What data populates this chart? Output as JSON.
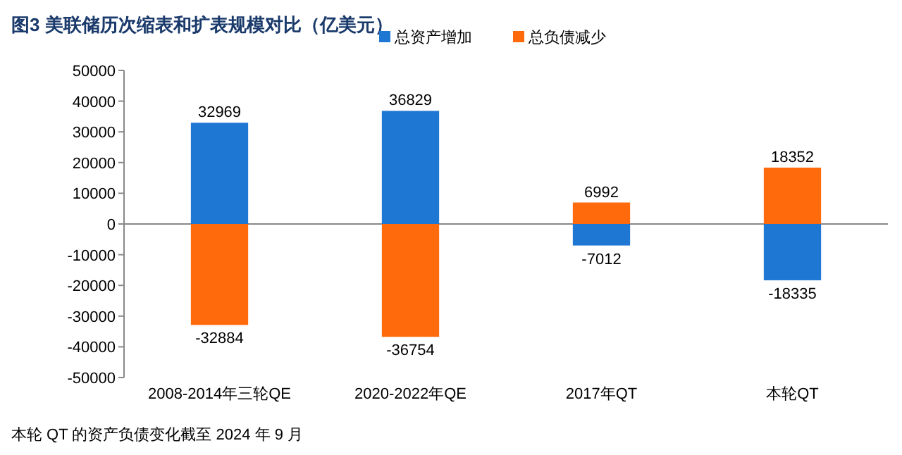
{
  "chart_data": {
    "type": "bar",
    "title": "图3  美联储历次缩表和扩表规模对比（亿美元）",
    "categories": [
      "2008-2014年三轮QE",
      "2020-2022年QE",
      "2017年QT",
      "本轮QT"
    ],
    "series": [
      {
        "name": "总资产增加",
        "color": "#1f77d4",
        "values": [
          32969,
          36829,
          -7012,
          -18335
        ]
      },
      {
        "name": "总负债减少",
        "color": "#ff6a0d",
        "values": [
          -32884,
          -36754,
          6992,
          18352
        ]
      }
    ],
    "stacked": true,
    "ylim": [
      -50000,
      50000
    ],
    "yticks": [
      -50000,
      -40000,
      -30000,
      -20000,
      -10000,
      0,
      10000,
      20000,
      30000,
      40000,
      50000
    ],
    "data_labels": true,
    "legend": "top",
    "annotations": [
      "本轮 QT 的资产负债变化截至 2024 年 9 月"
    ]
  }
}
